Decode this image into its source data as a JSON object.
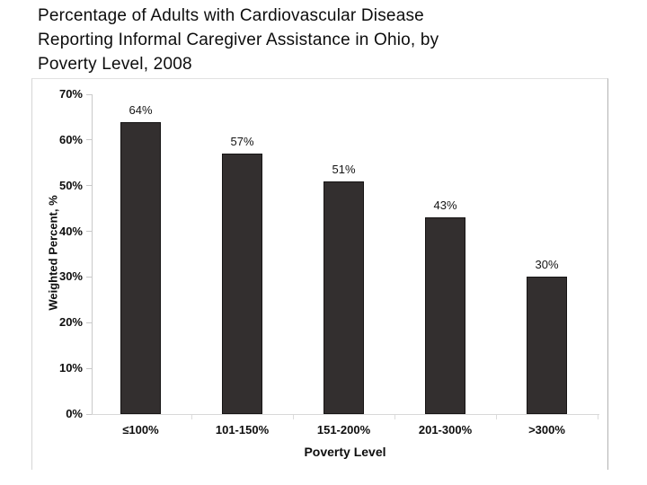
{
  "title": {
    "lines": [
      "Percentage of Adults with Cardiovascular Disease",
      "Reporting Informal Caregiver Assistance in Ohio, by",
      "Poverty Level, 2008"
    ]
  },
  "chart_data": {
    "type": "bar",
    "categories": [
      "≤100%",
      "101-150%",
      "151-200%",
      "201-300%",
      ">300%"
    ],
    "values": [
      64,
      57,
      51,
      43,
      30
    ],
    "data_labels": [
      "64%",
      "57%",
      "51%",
      "43%",
      "30%"
    ],
    "title": "Percentage of Adults with Cardiovascular Disease Reporting Informal Caregiver Assistance in Ohio, by Poverty Level, 2008",
    "xlabel": "Poverty Level",
    "ylabel": "Weighted Percent, %",
    "ylim": [
      0,
      70
    ],
    "ytick_step": 10,
    "ytick_labels": [
      "0%",
      "10%",
      "20%",
      "30%",
      "40%",
      "50%",
      "60%",
      "70%"
    ],
    "grid": false,
    "legend": "none",
    "bar_color": "#332f2f",
    "bar_border_color": "#161414",
    "axis_color": "#c9c9c9",
    "text_color": "#0d0d0d"
  }
}
